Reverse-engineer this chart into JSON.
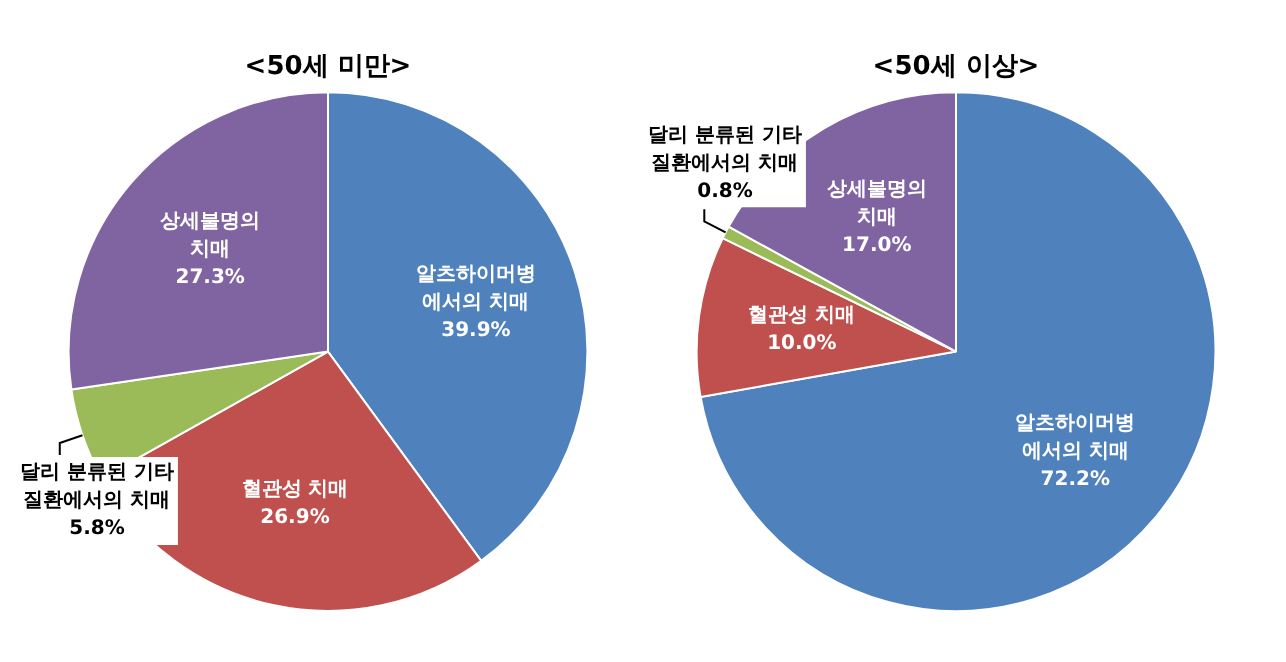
{
  "chart_data": [
    {
      "type": "pie",
      "title": "<50세 미만>",
      "categories": [
        "알츠하이머병\n에서의 치매",
        "혈관성 치매",
        "달리 분류된 기타\n질환에서의 치매",
        "상세불명의\n치매"
      ],
      "values": [
        39.9,
        26.9,
        5.8,
        27.3
      ],
      "value_labels": [
        "39.9%",
        "26.9%",
        "5.8%",
        "27.3%"
      ],
      "colors": [
        "#4f81bd",
        "#c0504d",
        "#9bbb59",
        "#8064a2"
      ],
      "legend": false
    },
    {
      "type": "pie",
      "title": "<50세 이상>",
      "categories": [
        "알츠하이머병\n에서의 치매",
        "혈관성 치매",
        "달리 분류된 기타\n질환에서의 치매",
        "상세불명의\n치매"
      ],
      "values": [
        72.2,
        10.0,
        0.8,
        17.0
      ],
      "value_labels": [
        "72.2%",
        "10.0%",
        "0.8%",
        "17.0%"
      ],
      "colors": [
        "#4f81bd",
        "#c0504d",
        "#9bbb59",
        "#8064a2"
      ],
      "legend": false
    }
  ]
}
